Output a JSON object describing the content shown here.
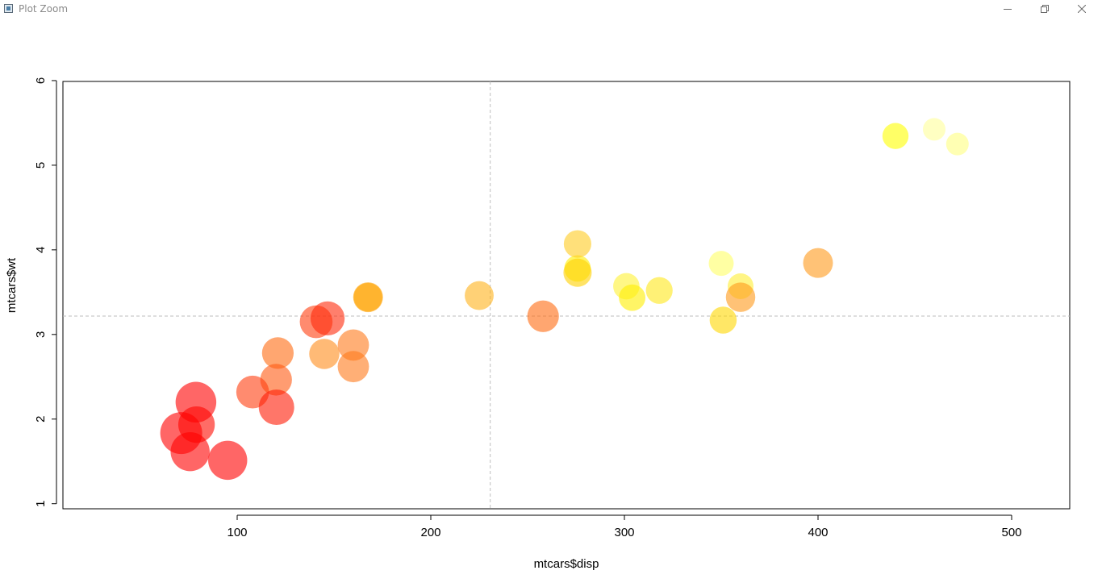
{
  "window": {
    "title": "Plot Zoom",
    "icon": "app-window-icon",
    "controls": [
      "minimize-icon",
      "restore-icon",
      "close-icon"
    ]
  },
  "chart_data": {
    "type": "scatter",
    "title": "",
    "xlabel": "mtcars$disp",
    "ylabel": "mtcars$wt",
    "xlim": [
      10,
      530
    ],
    "ylim": [
      0.94,
      5.99
    ],
    "xticks": [
      100,
      200,
      300,
      400,
      500
    ],
    "yticks": [
      1,
      2,
      3,
      4,
      5,
      6
    ],
    "grid": false,
    "legend": "none",
    "reference_lines": {
      "vertical_x": 230.7,
      "horizontal_y": 3.217
    },
    "reference_line_color": "#bebebe",
    "point_alpha": 0.6,
    "colors": {
      "red": "#ff0000",
      "orange_red": "#ff4500",
      "orange": "#ff8c00",
      "gold": "#ffa500",
      "yellow": "#ffff00",
      "light_yellow": "#ffd700",
      "pale_yellow": "#ffff80"
    },
    "points": [
      {
        "x": 160,
        "y": 2.62,
        "mpg": 21.0,
        "color": "#ff7a1a"
      },
      {
        "x": 160,
        "y": 2.875,
        "mpg": 21.0,
        "color": "#ff7a1a"
      },
      {
        "x": 108,
        "y": 2.32,
        "mpg": 22.8,
        "color": "#ff3d0f"
      },
      {
        "x": 258,
        "y": 3.215,
        "mpg": 21.4,
        "color": "#ff6a10"
      },
      {
        "x": 360,
        "y": 3.44,
        "mpg": 18.7,
        "color": "#ff9a1a"
      },
      {
        "x": 225,
        "y": 3.46,
        "mpg": 18.1,
        "color": "#ffb31a"
      },
      {
        "x": 360,
        "y": 3.57,
        "mpg": 14.3,
        "color": "#ffee33"
      },
      {
        "x": 146.7,
        "y": 3.19,
        "mpg": 24.4,
        "color": "#ff2a0a"
      },
      {
        "x": 140.8,
        "y": 3.15,
        "mpg": 22.8,
        "color": "#ff3d0f"
      },
      {
        "x": 167.6,
        "y": 3.44,
        "mpg": 19.2,
        "color": "#ffa000"
      },
      {
        "x": 167.6,
        "y": 3.44,
        "mpg": 17.8,
        "color": "#ffb31a"
      },
      {
        "x": 275.8,
        "y": 4.07,
        "mpg": 16.4,
        "color": "#ffcc22"
      },
      {
        "x": 275.8,
        "y": 3.73,
        "mpg": 17.3,
        "color": "#ffd000"
      },
      {
        "x": 275.8,
        "y": 3.78,
        "mpg": 15.2,
        "color": "#ffee00"
      },
      {
        "x": 472,
        "y": 5.25,
        "mpg": 10.4,
        "color": "#ffff80"
      },
      {
        "x": 460,
        "y": 5.424,
        "mpg": 10.4,
        "color": "#ffff99"
      },
      {
        "x": 440,
        "y": 5.345,
        "mpg": 14.7,
        "color": "#ffff00"
      },
      {
        "x": 78.7,
        "y": 2.2,
        "mpg": 32.4,
        "color": "#ff0000"
      },
      {
        "x": 75.7,
        "y": 1.615,
        "mpg": 30.4,
        "color": "#ff0000"
      },
      {
        "x": 71.1,
        "y": 1.835,
        "mpg": 33.9,
        "color": "#ff0000"
      },
      {
        "x": 120.1,
        "y": 2.465,
        "mpg": 21.5,
        "color": "#ff5a12"
      },
      {
        "x": 318,
        "y": 3.52,
        "mpg": 15.5,
        "color": "#ffe81a"
      },
      {
        "x": 304,
        "y": 3.435,
        "mpg": 15.2,
        "color": "#ffee00"
      },
      {
        "x": 350,
        "y": 3.84,
        "mpg": 13.3,
        "color": "#ffff66"
      },
      {
        "x": 400,
        "y": 3.845,
        "mpg": 19.2,
        "color": "#ff9a1a"
      },
      {
        "x": 79,
        "y": 1.935,
        "mpg": 27.3,
        "color": "#ff0a00"
      },
      {
        "x": 120.3,
        "y": 2.14,
        "mpg": 26.0,
        "color": "#ff1a05"
      },
      {
        "x": 95.1,
        "y": 1.513,
        "mpg": 30.4,
        "color": "#ff0000"
      },
      {
        "x": 351,
        "y": 3.17,
        "mpg": 15.8,
        "color": "#ffd700"
      },
      {
        "x": 145,
        "y": 2.77,
        "mpg": 19.7,
        "color": "#ff8c1a"
      },
      {
        "x": 301,
        "y": 3.57,
        "mpg": 15.0,
        "color": "#fff233"
      },
      {
        "x": 121,
        "y": 2.78,
        "mpg": 21.4,
        "color": "#ff6a10"
      }
    ]
  }
}
